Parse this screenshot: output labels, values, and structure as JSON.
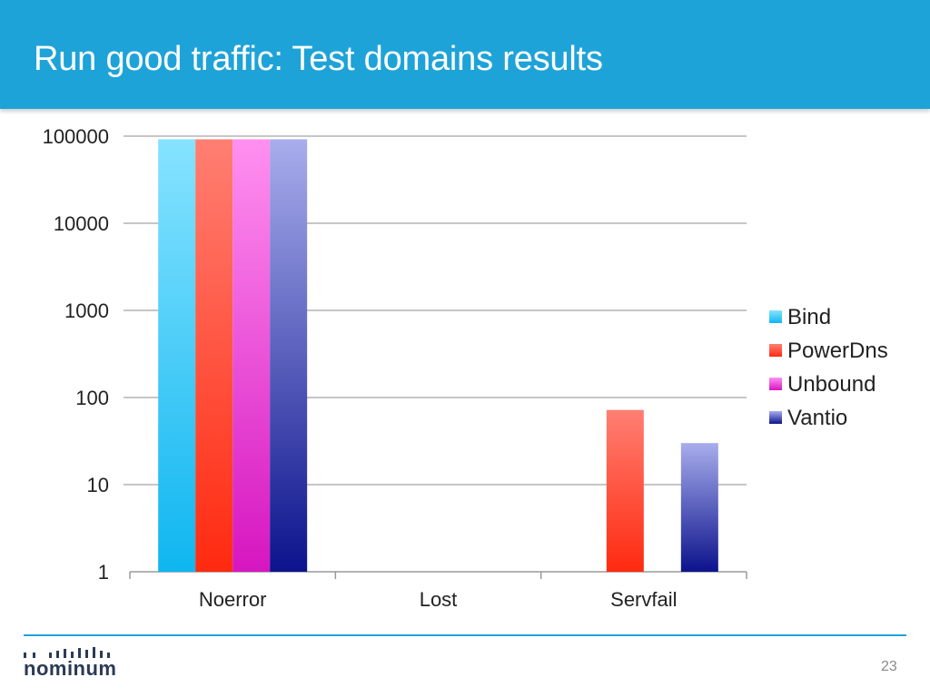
{
  "slide": {
    "title": "Run good traffic: Test domains results",
    "logo_text": "nominum",
    "page_number": "23",
    "accent_color": "#1ea3d8"
  },
  "chart_data": {
    "type": "bar",
    "yscale": "log",
    "ylim": [
      1,
      100000
    ],
    "yticks": [
      "100000",
      "10000",
      "1000",
      "100",
      "10",
      "1"
    ],
    "categories": [
      "Noerror",
      "Lost",
      "Servfail"
    ],
    "legend_position": "right",
    "grid": true,
    "series": [
      {
        "name": "Bind",
        "values": [
          92000,
          0,
          0
        ],
        "color_light": "#86e3ff",
        "color_dark": "#0fb6f0"
      },
      {
        "name": "PowerDns",
        "values": [
          92000,
          0,
          72
        ],
        "color_light": "#ff7f72",
        "color_dark": "#ff2a10"
      },
      {
        "name": "Unbound",
        "values": [
          92000,
          0,
          0
        ],
        "color_light": "#ff90f0",
        "color_dark": "#d616c0"
      },
      {
        "name": "Vantio",
        "values": [
          92000,
          0,
          30
        ],
        "color_light": "#a8adec",
        "color_dark": "#0c138c"
      }
    ]
  }
}
